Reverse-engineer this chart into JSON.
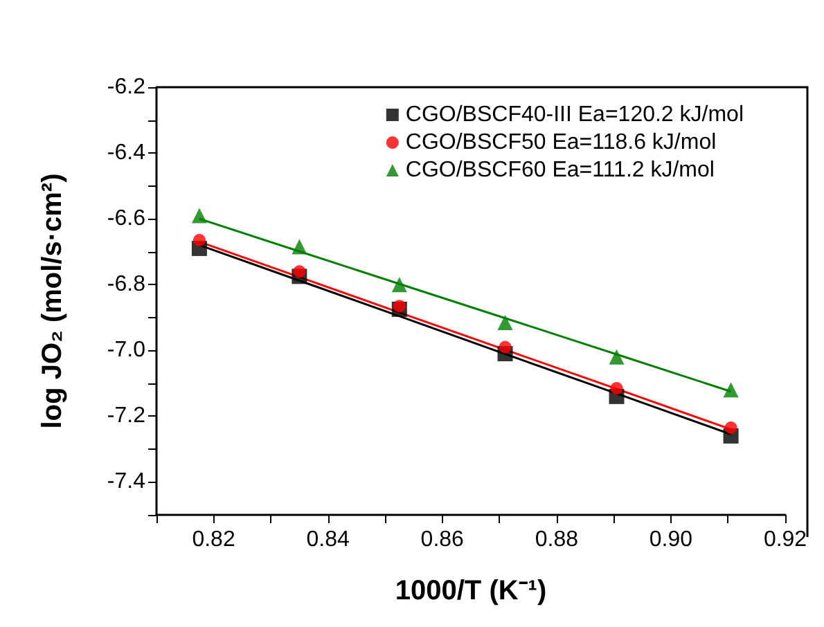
{
  "chart_data": {
    "type": "scatter",
    "xlabel": "1000/T (K⁻¹)",
    "ylabel": "log JO₂ (mol/s·cm²)",
    "xlim": [
      0.81,
      0.92
    ],
    "xticks": [
      {
        "value": 0.81,
        "label": null
      },
      0.82,
      {
        "value": 0.83,
        "label": null
      },
      0.84,
      {
        "value": 0.85,
        "label": null
      },
      0.86,
      {
        "value": 0.87,
        "label": null
      },
      0.88,
      {
        "value": 0.89,
        "label": null
      },
      {
        "value": 0.9,
        "label": "0.90"
      },
      {
        "value": 0.91,
        "label": null
      },
      0.92
    ],
    "ylim": [
      -7.5,
      -6.2
    ],
    "yticks": [
      {
        "value": -7.5,
        "label": null
      },
      -7.4,
      {
        "value": -7.3,
        "label": null
      },
      -7.2,
      {
        "value": -7.1,
        "label": null
      },
      {
        "value": -7,
        "label": "-7.0"
      },
      {
        "value": -6.9,
        "label": null
      },
      -6.8,
      {
        "value": -6.7,
        "label": null
      },
      -6.6,
      {
        "value": -6.5,
        "label": null
      },
      -6.4,
      {
        "value": -6.3,
        "label": null
      },
      -6.2
    ],
    "grid": false,
    "legend": "top right",
    "x": [
      0.8175,
      0.835,
      0.8525,
      0.871,
      0.8905,
      0.9105
    ],
    "series": [
      {
        "name": "CGO/BSCF40-III Ea=120.2 kJ/mol",
        "color": "#000000",
        "marker": "square",
        "values": [
          -6.69,
          -6.775,
          -6.875,
          -7.01,
          -7.14,
          -7.26
        ]
      },
      {
        "name": "CGO/BSCF50 Ea=118.6 kJ/mol",
        "color": "#ff0000",
        "marker": "circle",
        "values": [
          -6.665,
          -6.76,
          -6.865,
          -6.99,
          -7.115,
          -7.235
        ]
      },
      {
        "name": "CGO/BSCF60 Ea=111.2 kJ/mol",
        "color": "#008000",
        "marker": "triangle",
        "values": [
          -6.59,
          -6.685,
          -6.8,
          -6.915,
          -7.02,
          -7.12
        ]
      },
      {
        "type": "line",
        "color": "#000000",
        "marker": "none",
        "values": [
          -6.68,
          -6.788,
          -6.896,
          -7.011,
          -7.131,
          -7.255
        ]
      },
      {
        "type": "line",
        "color": "#ff0000",
        "marker": "none",
        "values": [
          -6.67,
          -6.777,
          -6.885,
          -6.998,
          -7.117,
          -7.24
        ]
      },
      {
        "type": "line",
        "color": "#008000",
        "marker": "none",
        "values": [
          -6.6,
          -6.699,
          -6.798,
          -6.902,
          -7.012,
          -7.125
        ]
      }
    ]
  }
}
